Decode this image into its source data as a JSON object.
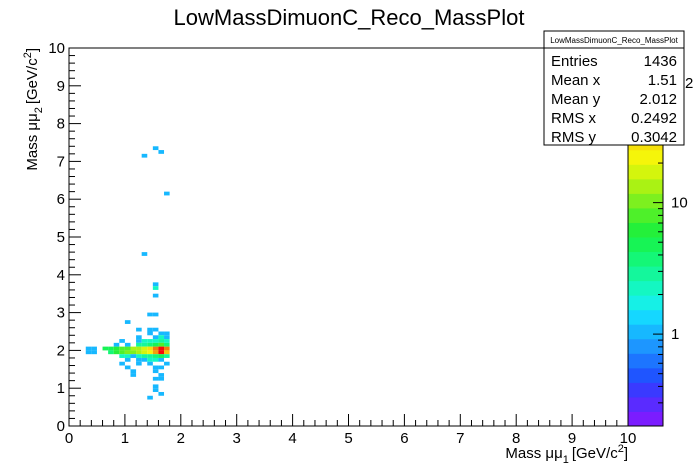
{
  "chart_data": {
    "type": "heatmap",
    "title": "LowMassDimuonC_Reco_MassPlot",
    "xlabel": {
      "main": "Mass μμ",
      "sub": "1",
      "unit": "[GeV/c",
      "sup": "2",
      "close": "]"
    },
    "ylabel": {
      "main": "Mass μμ",
      "sub": "2",
      "unit": "[GeV/c",
      "sup": "2",
      "close": "]"
    },
    "xlim": [
      0,
      10
    ],
    "ylim": [
      0,
      10
    ],
    "x_ticks": [
      "0",
      "1",
      "2",
      "3",
      "4",
      "5",
      "6",
      "7",
      "8",
      "9",
      "10"
    ],
    "y_ticks": [
      "0",
      "1",
      "2",
      "3",
      "4",
      "5",
      "6",
      "7",
      "8",
      "9",
      "10"
    ],
    "color_scale": "log",
    "color_ticks": [
      "1",
      "10"
    ],
    "color_exponent_label": "2",
    "stats": {
      "title": "LowMassDimuonC_Reco_MassPlot",
      "rows": [
        {
          "label": "Entries",
          "value": "1436"
        },
        {
          "label": "Mean x",
          "value": "1.51"
        },
        {
          "label": "Mean y",
          "value": "2.012"
        },
        {
          "label": "RMS x",
          "value": "0.2492"
        },
        {
          "label": "RMS y",
          "value": "0.3042"
        }
      ]
    },
    "bins": [
      {
        "x": 1.55,
        "y": 7.35,
        "v": 1
      },
      {
        "x": 1.65,
        "y": 7.25,
        "v": 1
      },
      {
        "x": 1.35,
        "y": 7.15,
        "v": 1
      },
      {
        "x": 1.75,
        "y": 6.15,
        "v": 1
      },
      {
        "x": 1.35,
        "y": 4.55,
        "v": 1
      },
      {
        "x": 1.55,
        "y": 3.75,
        "v": 1
      },
      {
        "x": 1.55,
        "y": 3.65,
        "v": 2
      },
      {
        "x": 1.55,
        "y": 3.45,
        "v": 1
      },
      {
        "x": 1.45,
        "y": 2.95,
        "v": 1
      },
      {
        "x": 1.55,
        "y": 2.95,
        "v": 1
      },
      {
        "x": 1.05,
        "y": 2.75,
        "v": 1
      },
      {
        "x": 1.25,
        "y": 2.55,
        "v": 1
      },
      {
        "x": 1.45,
        "y": 2.55,
        "v": 1
      },
      {
        "x": 1.55,
        "y": 2.55,
        "v": 1
      },
      {
        "x": 1.65,
        "y": 2.45,
        "v": 1
      },
      {
        "x": 1.45,
        "y": 2.45,
        "v": 1
      },
      {
        "x": 1.75,
        "y": 2.45,
        "v": 1
      },
      {
        "x": 1.25,
        "y": 2.35,
        "v": 1
      },
      {
        "x": 1.55,
        "y": 2.35,
        "v": 1
      },
      {
        "x": 1.65,
        "y": 2.35,
        "v": 2
      },
      {
        "x": 1.75,
        "y": 2.35,
        "v": 1
      },
      {
        "x": 0.95,
        "y": 2.25,
        "v": 1
      },
      {
        "x": 1.25,
        "y": 2.25,
        "v": 1
      },
      {
        "x": 1.35,
        "y": 2.25,
        "v": 2
      },
      {
        "x": 1.45,
        "y": 2.25,
        "v": 2
      },
      {
        "x": 1.55,
        "y": 2.25,
        "v": 2
      },
      {
        "x": 1.65,
        "y": 2.25,
        "v": 3
      },
      {
        "x": 1.75,
        "y": 2.25,
        "v": 2
      },
      {
        "x": 0.85,
        "y": 2.15,
        "v": 1
      },
      {
        "x": 1.05,
        "y": 2.15,
        "v": 1
      },
      {
        "x": 1.25,
        "y": 2.15,
        "v": 3
      },
      {
        "x": 1.35,
        "y": 2.15,
        "v": 3
      },
      {
        "x": 1.45,
        "y": 2.15,
        "v": 4
      },
      {
        "x": 1.55,
        "y": 2.15,
        "v": 5
      },
      {
        "x": 1.65,
        "y": 2.15,
        "v": 8
      },
      {
        "x": 1.75,
        "y": 2.15,
        "v": 4
      },
      {
        "x": 0.35,
        "y": 2.05,
        "v": 1
      },
      {
        "x": 0.45,
        "y": 2.05,
        "v": 1
      },
      {
        "x": 0.65,
        "y": 2.05,
        "v": 5
      },
      {
        "x": 0.75,
        "y": 2.05,
        "v": 5
      },
      {
        "x": 0.85,
        "y": 2.05,
        "v": 6
      },
      {
        "x": 0.95,
        "y": 2.05,
        "v": 8
      },
      {
        "x": 1.05,
        "y": 2.05,
        "v": 9
      },
      {
        "x": 1.15,
        "y": 2.05,
        "v": 12
      },
      {
        "x": 1.25,
        "y": 2.05,
        "v": 14
      },
      {
        "x": 1.35,
        "y": 2.05,
        "v": 18
      },
      {
        "x": 1.45,
        "y": 2.05,
        "v": 30
      },
      {
        "x": 1.55,
        "y": 2.05,
        "v": 60
      },
      {
        "x": 1.65,
        "y": 2.05,
        "v": 150
      },
      {
        "x": 1.75,
        "y": 2.05,
        "v": 60
      },
      {
        "x": 0.35,
        "y": 1.95,
        "v": 1
      },
      {
        "x": 0.45,
        "y": 1.95,
        "v": 1
      },
      {
        "x": 0.75,
        "y": 1.95,
        "v": 4
      },
      {
        "x": 0.85,
        "y": 1.95,
        "v": 6
      },
      {
        "x": 0.95,
        "y": 1.95,
        "v": 8
      },
      {
        "x": 1.05,
        "y": 1.95,
        "v": 11
      },
      {
        "x": 1.15,
        "y": 1.95,
        "v": 10
      },
      {
        "x": 1.25,
        "y": 1.95,
        "v": 14
      },
      {
        "x": 1.35,
        "y": 1.95,
        "v": 18
      },
      {
        "x": 1.45,
        "y": 1.95,
        "v": 25
      },
      {
        "x": 1.55,
        "y": 1.95,
        "v": 50
      },
      {
        "x": 1.65,
        "y": 1.95,
        "v": 120
      },
      {
        "x": 1.75,
        "y": 1.95,
        "v": 40
      },
      {
        "x": 0.95,
        "y": 1.85,
        "v": 2
      },
      {
        "x": 1.05,
        "y": 1.85,
        "v": 2
      },
      {
        "x": 1.15,
        "y": 1.85,
        "v": 1
      },
      {
        "x": 1.25,
        "y": 1.85,
        "v": 2
      },
      {
        "x": 1.35,
        "y": 1.85,
        "v": 3
      },
      {
        "x": 1.45,
        "y": 1.85,
        "v": 3
      },
      {
        "x": 1.55,
        "y": 1.85,
        "v": 4
      },
      {
        "x": 1.65,
        "y": 1.85,
        "v": 5
      },
      {
        "x": 1.75,
        "y": 1.85,
        "v": 3
      },
      {
        "x": 1.05,
        "y": 1.75,
        "v": 1
      },
      {
        "x": 1.25,
        "y": 1.75,
        "v": 1
      },
      {
        "x": 1.35,
        "y": 1.75,
        "v": 1
      },
      {
        "x": 1.45,
        "y": 1.75,
        "v": 2
      },
      {
        "x": 1.55,
        "y": 1.75,
        "v": 2
      },
      {
        "x": 1.65,
        "y": 1.75,
        "v": 1
      },
      {
        "x": 0.95,
        "y": 1.65,
        "v": 1
      },
      {
        "x": 1.25,
        "y": 1.65,
        "v": 1
      },
      {
        "x": 1.45,
        "y": 1.65,
        "v": 1
      },
      {
        "x": 1.75,
        "y": 1.65,
        "v": 1
      },
      {
        "x": 1.05,
        "y": 1.55,
        "v": 1
      },
      {
        "x": 1.55,
        "y": 1.55,
        "v": 1
      },
      {
        "x": 1.65,
        "y": 1.55,
        "v": 1
      },
      {
        "x": 1.15,
        "y": 1.45,
        "v": 1
      },
      {
        "x": 1.55,
        "y": 1.45,
        "v": 1
      },
      {
        "x": 1.15,
        "y": 1.35,
        "v": 1
      },
      {
        "x": 1.65,
        "y": 1.35,
        "v": 1
      },
      {
        "x": 1.55,
        "y": 1.25,
        "v": 1
      },
      {
        "x": 1.65,
        "y": 1.25,
        "v": 1
      },
      {
        "x": 1.55,
        "y": 1.05,
        "v": 1
      },
      {
        "x": 1.55,
        "y": 0.95,
        "v": 1
      },
      {
        "x": 1.65,
        "y": 0.85,
        "v": 1
      },
      {
        "x": 1.45,
        "y": 0.75,
        "v": 1
      }
    ],
    "color_max": 150,
    "palette": [
      "#7b1cff",
      "#5a2bff",
      "#3a3aff",
      "#1f55ff",
      "#1d75ff",
      "#1d96ff",
      "#17b8ff",
      "#15d7ff",
      "#16f0e6",
      "#14f7c2",
      "#14f79c",
      "#14f777",
      "#17f455",
      "#24f03a",
      "#4ef02a",
      "#7df01f",
      "#aaf214",
      "#d4f50d",
      "#f5f50a",
      "#f5e00a",
      "#f5c60a",
      "#f5a00a",
      "#f57a0a",
      "#f5500a",
      "#f52a0a",
      "#f50a0a"
    ]
  }
}
